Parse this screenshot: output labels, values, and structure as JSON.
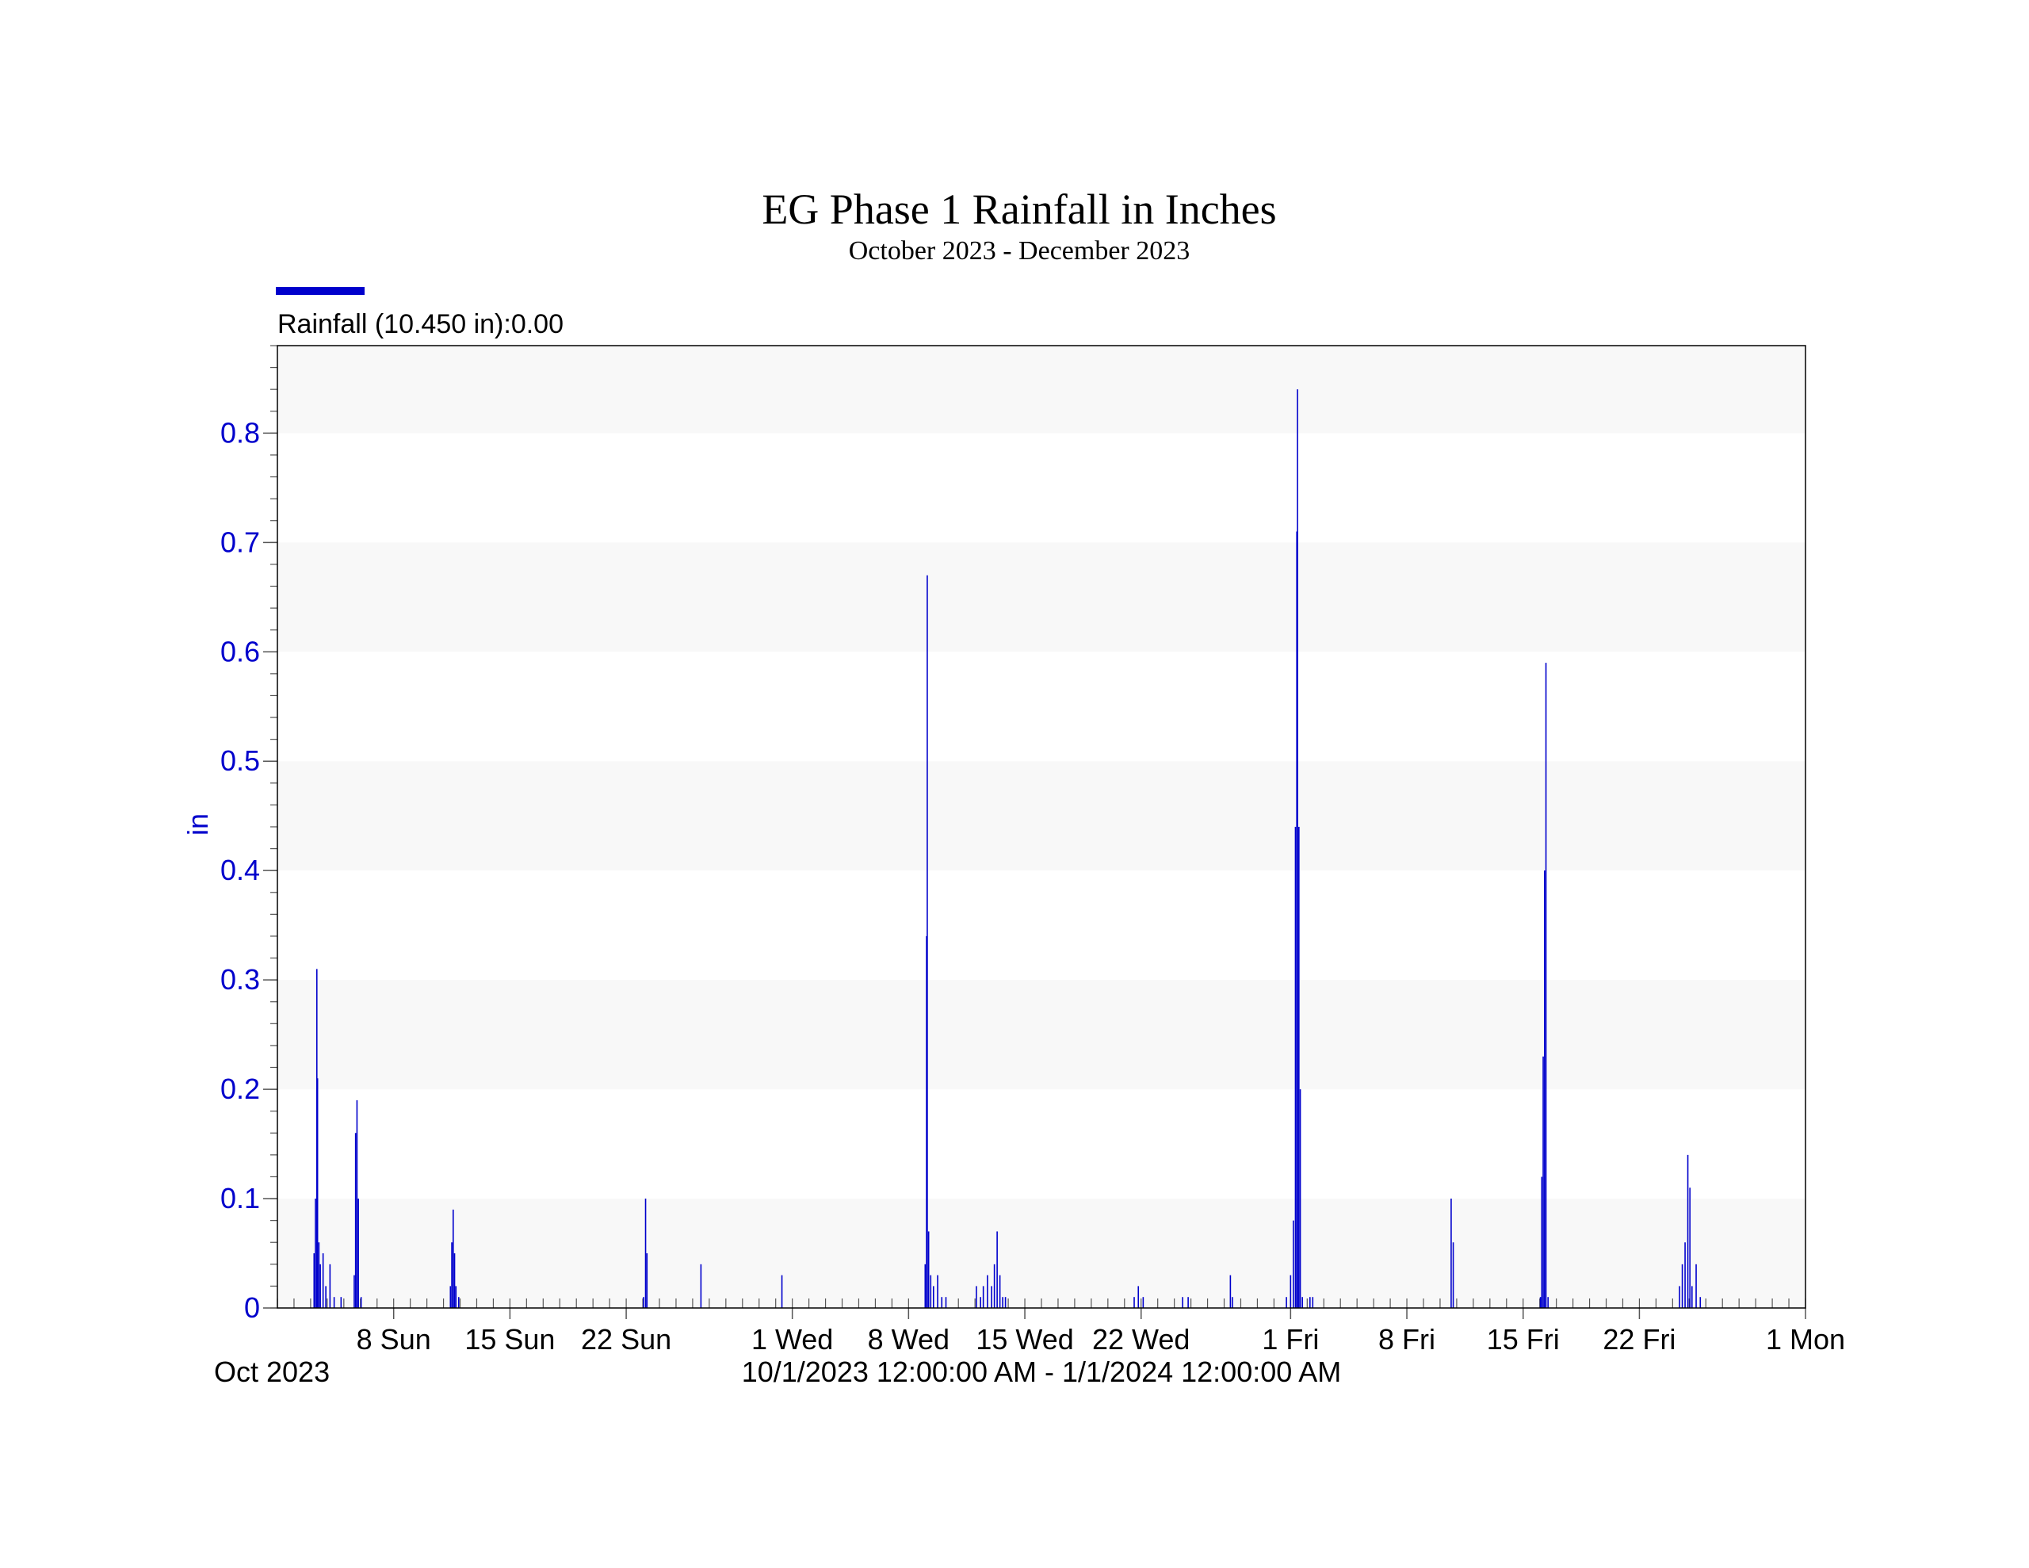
{
  "chart_data": {
    "type": "bar",
    "title": "EG Phase 1 Rainfall in Inches",
    "subtitle": "October 2023 - December 2023",
    "legend": {
      "label": "Rainfall (10.450 in):0.00",
      "placement": "top-left",
      "color": "#0000cc"
    },
    "ylabel": "in",
    "ylim": [
      0,
      0.88
    ],
    "yticks": [
      {
        "value": 0,
        "label": "0"
      },
      {
        "value": 0.1,
        "label": "0.1"
      },
      {
        "value": 0.2,
        "label": "0.2"
      },
      {
        "value": 0.3,
        "label": "0.3"
      },
      {
        "value": 0.4,
        "label": "0.4"
      },
      {
        "value": 0.5,
        "label": "0.5"
      },
      {
        "value": 0.6,
        "label": "0.6"
      },
      {
        "value": 0.7,
        "label": "0.7"
      },
      {
        "value": 0.8,
        "label": "0.8"
      }
    ],
    "xlim": [
      "2023-10-01T00:00",
      "2024-01-01T00:00"
    ],
    "xticks": [
      {
        "date": "2023-10-08",
        "label": "8 Sun"
      },
      {
        "date": "2023-10-15",
        "label": "15 Sun"
      },
      {
        "date": "2023-10-22",
        "label": "22 Sun"
      },
      {
        "date": "2023-11-01",
        "label": "1 Wed"
      },
      {
        "date": "2023-11-08",
        "label": "8 Wed"
      },
      {
        "date": "2023-11-15",
        "label": "15 Wed"
      },
      {
        "date": "2023-11-22",
        "label": "22 Wed"
      },
      {
        "date": "2023-12-01",
        "label": "1 Fri"
      },
      {
        "date": "2023-12-08",
        "label": "8 Fri"
      },
      {
        "date": "2023-12-15",
        "label": "15 Fri"
      },
      {
        "date": "2023-12-22",
        "label": "22 Fri"
      },
      {
        "date": "2024-01-01",
        "label": "1 Mon"
      }
    ],
    "x_start_label": "Oct 2023",
    "x_range_label": "10/1/2023 12:00:00 AM - 1/1/2024 12:00:00 AM",
    "grid": "alternating horizontal bands",
    "series": [
      {
        "name": "Rainfall",
        "color": "#0000cc",
        "points": [
          [
            "2023-10-03T05:00",
            0.05
          ],
          [
            "2023-10-03T07:00",
            0.1
          ],
          [
            "2023-10-03T09:00",
            0.31
          ],
          [
            "2023-10-03T10:00",
            0.21
          ],
          [
            "2023-10-03T12:00",
            0.06
          ],
          [
            "2023-10-03T14:00",
            0.04
          ],
          [
            "2023-10-03T18:00",
            0.05
          ],
          [
            "2023-10-03T22:00",
            0.02
          ],
          [
            "2023-10-04T04:00",
            0.04
          ],
          [
            "2023-10-04T10:00",
            0.01
          ],
          [
            "2023-10-04T20:00",
            0.01
          ],
          [
            "2023-10-05T15:00",
            0.03
          ],
          [
            "2023-10-05T17:00",
            0.16
          ],
          [
            "2023-10-05T19:00",
            0.19
          ],
          [
            "2023-10-05T21:00",
            0.1
          ],
          [
            "2023-10-06T01:00",
            0.01
          ],
          [
            "2023-10-11T10:00",
            0.02
          ],
          [
            "2023-10-11T12:00",
            0.06
          ],
          [
            "2023-10-11T14:00",
            0.09
          ],
          [
            "2023-10-11T16:00",
            0.05
          ],
          [
            "2023-10-11T18:00",
            0.02
          ],
          [
            "2023-10-11T22:00",
            0.01
          ],
          [
            "2023-10-23T01:00",
            0.01
          ],
          [
            "2023-10-23T04:00",
            0.1
          ],
          [
            "2023-10-23T06:00",
            0.05
          ],
          [
            "2023-10-26T12:00",
            0.04
          ],
          [
            "2023-10-31T09:00",
            0.03
          ],
          [
            "2023-11-09T00:00",
            0.04
          ],
          [
            "2023-11-09T02:00",
            0.34
          ],
          [
            "2023-11-09T03:00",
            0.67
          ],
          [
            "2023-11-09T05:00",
            0.07
          ],
          [
            "2023-11-09T08:00",
            0.03
          ],
          [
            "2023-11-09T12:00",
            0.02
          ],
          [
            "2023-11-09T18:00",
            0.03
          ],
          [
            "2023-11-10T00:00",
            0.01
          ],
          [
            "2023-11-10T06:00",
            0.01
          ],
          [
            "2023-11-12T02:00",
            0.02
          ],
          [
            "2023-11-12T08:00",
            0.01
          ],
          [
            "2023-11-12T12:00",
            0.02
          ],
          [
            "2023-11-12T18:00",
            0.03
          ],
          [
            "2023-11-13T00:00",
            0.02
          ],
          [
            "2023-11-13T04:00",
            0.04
          ],
          [
            "2023-11-13T08:00",
            0.07
          ],
          [
            "2023-11-13T12:00",
            0.03
          ],
          [
            "2023-11-13T16:00",
            0.01
          ],
          [
            "2023-11-13T20:00",
            0.01
          ],
          [
            "2023-11-21T14:00",
            0.01
          ],
          [
            "2023-11-21T20:00",
            0.02
          ],
          [
            "2023-11-22T03:00",
            0.01
          ],
          [
            "2023-11-24T12:00",
            0.01
          ],
          [
            "2023-11-24T20:00",
            0.01
          ],
          [
            "2023-11-27T09:00",
            0.03
          ],
          [
            "2023-11-27T12:00",
            0.01
          ],
          [
            "2023-11-30T18:00",
            0.01
          ],
          [
            "2023-12-01T00:00",
            0.03
          ],
          [
            "2023-12-01T04:00",
            0.08
          ],
          [
            "2023-12-01T07:00",
            0.44
          ],
          [
            "2023-12-01T09:00",
            0.71
          ],
          [
            "2023-12-01T10:00",
            0.84
          ],
          [
            "2023-12-01T12:00",
            0.44
          ],
          [
            "2023-12-01T14:00",
            0.2
          ],
          [
            "2023-12-01T17:00",
            0.01
          ],
          [
            "2023-12-02T04:00",
            0.01
          ],
          [
            "2023-12-02T08:00",
            0.01
          ],
          [
            "2023-12-10T16:00",
            0.1
          ],
          [
            "2023-12-10T19:00",
            0.06
          ],
          [
            "2023-12-16T01:00",
            0.01
          ],
          [
            "2023-12-16T03:00",
            0.12
          ],
          [
            "2023-12-16T05:00",
            0.23
          ],
          [
            "2023-12-16T07:00",
            0.4
          ],
          [
            "2023-12-16T09:00",
            0.59
          ],
          [
            "2023-12-16T12:00",
            0.01
          ],
          [
            "2023-12-24T10:00",
            0.02
          ],
          [
            "2023-12-24T14:00",
            0.04
          ],
          [
            "2023-12-24T18:00",
            0.06
          ],
          [
            "2023-12-24T22:00",
            0.14
          ],
          [
            "2023-12-25T01:00",
            0.11
          ],
          [
            "2023-12-25T04:00",
            0.02
          ],
          [
            "2023-12-25T10:00",
            0.04
          ],
          [
            "2023-12-25T16:00",
            0.01
          ]
        ]
      }
    ]
  }
}
